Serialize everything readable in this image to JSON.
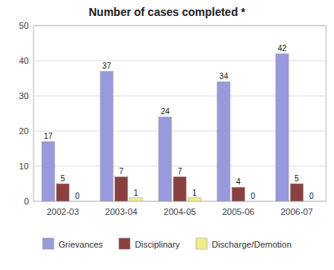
{
  "chart_data": {
    "type": "bar",
    "title": "Number of cases completed *",
    "categories": [
      "2002-03",
      "2003-04",
      "2004-05",
      "2005-06",
      "2006-07"
    ],
    "series": [
      {
        "name": "Grievances",
        "color": "#9999dd",
        "values": [
          17,
          37,
          24,
          34,
          42
        ]
      },
      {
        "name": "Disciplinary",
        "color": "#8B4040",
        "values": [
          5,
          7,
          7,
          4,
          5
        ]
      },
      {
        "name": "Discharge/Demotion",
        "color": "#EEEE88",
        "values": [
          0,
          1,
          1,
          0,
          0
        ]
      }
    ],
    "ylim": [
      0,
      50
    ],
    "yticks": [
      0,
      10,
      20,
      30,
      40,
      50
    ],
    "grid": true,
    "data_labels": true,
    "legend": "bottom"
  }
}
